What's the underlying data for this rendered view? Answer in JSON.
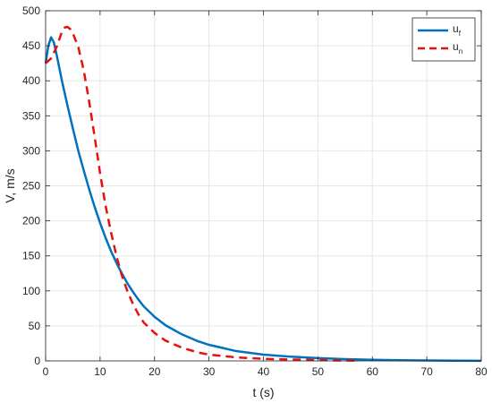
{
  "chart_data": {
    "type": "line",
    "xlabel": "t (s)",
    "ylabel": "V, m/s",
    "xlim": [
      0,
      80
    ],
    "ylim": [
      0,
      500
    ],
    "xticks": [
      0,
      10,
      20,
      30,
      40,
      50,
      60,
      70,
      80
    ],
    "yticks": [
      0,
      50,
      100,
      150,
      200,
      250,
      300,
      350,
      400,
      450,
      500
    ],
    "grid": true,
    "legend_position": "top-right",
    "series": [
      {
        "name": "u_f",
        "legend_base": "u",
        "legend_sub": "f",
        "color": "#0072BD",
        "style": "solid",
        "x": [
          0,
          0.5,
          1,
          1.5,
          2,
          3,
          4,
          5,
          6,
          7,
          8,
          9,
          10,
          11,
          12,
          13,
          14,
          15,
          16,
          17,
          18,
          20,
          22,
          25,
          28,
          30,
          35,
          40,
          45,
          50,
          55,
          60,
          65,
          70,
          75,
          80
        ],
        "y": [
          425,
          450,
          462,
          455,
          438,
          400,
          365,
          332,
          300,
          272,
          245,
          220,
          197,
          176,
          157,
          140,
          125,
          111,
          99,
          88,
          78,
          63,
          51,
          38,
          28,
          23,
          14,
          9,
          6,
          4,
          2.5,
          1.6,
          1,
          0.6,
          0.4,
          0.2
        ]
      },
      {
        "name": "u_n",
        "legend_base": "u",
        "legend_sub": "n",
        "color": "#E3120B",
        "style": "dashed",
        "x": [
          0,
          1,
          2,
          3,
          3.5,
          4,
          4.5,
          5,
          6,
          7,
          8,
          9,
          10,
          11,
          12,
          13,
          14,
          15,
          16,
          17,
          18,
          20,
          22,
          25,
          28,
          30,
          35,
          40,
          45,
          50,
          55,
          57
        ],
        "y": [
          425,
          432,
          448,
          470,
          476,
          477,
          474,
          468,
          448,
          415,
          370,
          320,
          268,
          222,
          184,
          150,
          122,
          100,
          82,
          67,
          55,
          40,
          29,
          19,
          12,
          9,
          5,
          3,
          2,
          1.2,
          0.6,
          0.4
        ]
      }
    ]
  }
}
